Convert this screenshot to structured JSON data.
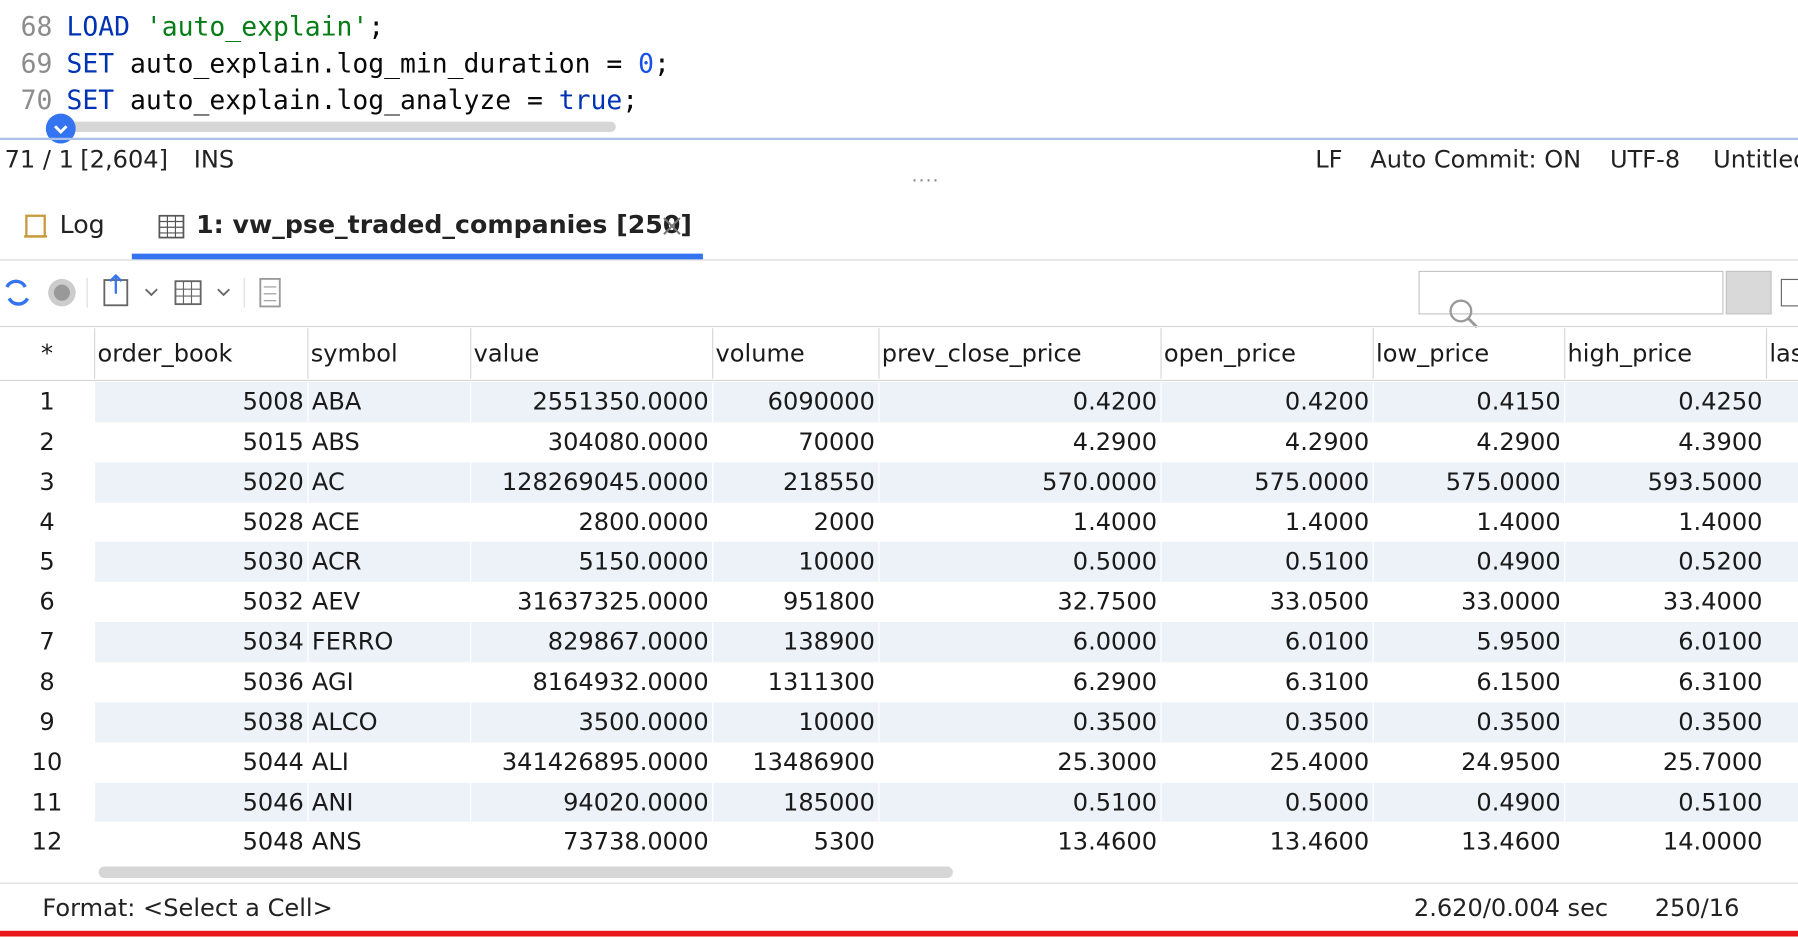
{
  "editor": {
    "lines": [
      {
        "number": "68",
        "tokens": [
          {
            "text": "LOAD",
            "color": "#0033b3"
          },
          {
            "text": " ",
            "color": "#080808"
          },
          {
            "text": "'auto_explain'",
            "color": "#067d17"
          },
          {
            "text": ";",
            "color": "#080808"
          }
        ]
      },
      {
        "number": "69",
        "tokens": [
          {
            "text": "SET",
            "color": "#0033b3"
          },
          {
            "text": " auto_explain.log_min_duration = ",
            "color": "#080808"
          },
          {
            "text": "0",
            "color": "#1750eb"
          },
          {
            "text": ";",
            "color": "#080808"
          }
        ]
      },
      {
        "number": "70",
        "tokens": [
          {
            "text": "SET",
            "color": "#0033b3"
          },
          {
            "text": " auto_explain.log_analyze = ",
            "color": "#080808"
          },
          {
            "text": "true",
            "color": "#0033b3"
          },
          {
            "text": ";",
            "color": "#080808"
          }
        ]
      }
    ]
  },
  "status": {
    "position": "71 / 1",
    "chars": "[2,604]",
    "mode": "INS",
    "line_ending": "LF",
    "auto_commit": "Auto Commit: ON",
    "encoding": "UTF-8",
    "file": "Untitled"
  },
  "tabs": {
    "log": "Log",
    "result": "1: vw_pse_traded_companies [250]"
  },
  "table": {
    "columns": [
      "*",
      "order_book",
      "symbol",
      "value",
      "volume",
      "prev_close_price",
      "open_price",
      "low_price",
      "high_price",
      "las"
    ],
    "rows": [
      [
        "1",
        "5008",
        "ABA",
        "2551350.0000",
        "6090000",
        "0.4200",
        "0.4200",
        "0.4150",
        "0.4250"
      ],
      [
        "2",
        "5015",
        "ABS",
        "304080.0000",
        "70000",
        "4.2900",
        "4.2900",
        "4.2900",
        "4.3900"
      ],
      [
        "3",
        "5020",
        "AC",
        "128269045.0000",
        "218550",
        "570.0000",
        "575.0000",
        "575.0000",
        "593.5000"
      ],
      [
        "4",
        "5028",
        "ACE",
        "2800.0000",
        "2000",
        "1.4000",
        "1.4000",
        "1.4000",
        "1.4000"
      ],
      [
        "5",
        "5030",
        "ACR",
        "5150.0000",
        "10000",
        "0.5000",
        "0.5100",
        "0.4900",
        "0.5200"
      ],
      [
        "6",
        "5032",
        "AEV",
        "31637325.0000",
        "951800",
        "32.7500",
        "33.0500",
        "33.0000",
        "33.4000"
      ],
      [
        "7",
        "5034",
        "FERRO",
        "829867.0000",
        "138900",
        "6.0000",
        "6.0100",
        "5.9500",
        "6.0100"
      ],
      [
        "8",
        "5036",
        "AGI",
        "8164932.0000",
        "1311300",
        "6.2900",
        "6.3100",
        "6.1500",
        "6.3100"
      ],
      [
        "9",
        "5038",
        "ALCO",
        "3500.0000",
        "10000",
        "0.3500",
        "0.3500",
        "0.3500",
        "0.3500"
      ],
      [
        "10",
        "5044",
        "ALI",
        "341426895.0000",
        "13486900",
        "25.3000",
        "25.4000",
        "24.9500",
        "25.7000"
      ],
      [
        "11",
        "5046",
        "ANI",
        "94020.0000",
        "185000",
        "0.5100",
        "0.5000",
        "0.4900",
        "0.5100"
      ],
      [
        "12",
        "5048",
        "ANS",
        "73738.0000",
        "5300",
        "13.4600",
        "13.4600",
        "13.4600",
        "14.0000"
      ]
    ]
  },
  "footer": {
    "format": "Format: <Select a Cell>",
    "timing": "2.620/0.004 sec",
    "count": "250/16"
  }
}
